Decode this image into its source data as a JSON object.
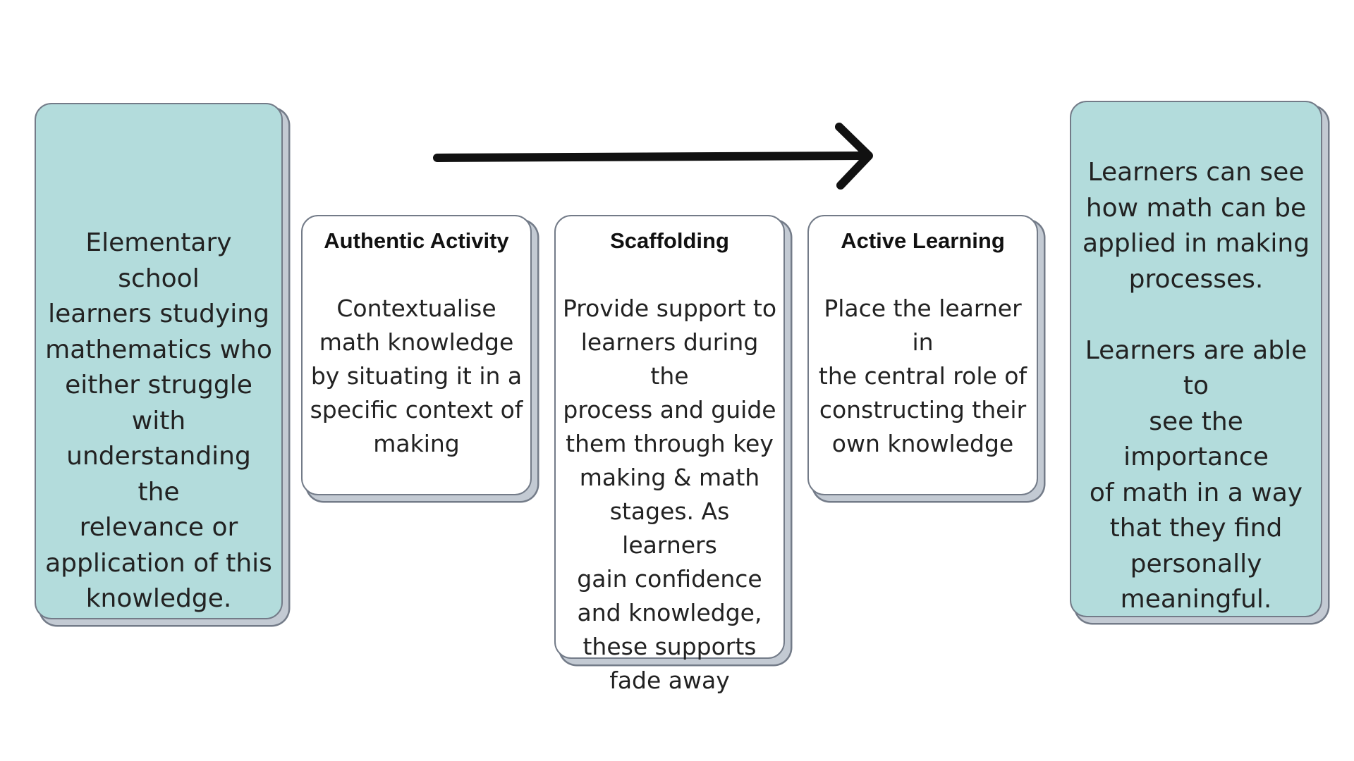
{
  "problem": {
    "text": "Elementary school\nlearners studying\nmathematics who\neither struggle with\nunderstanding the\nrelevance or\napplication of this\nknowledge."
  },
  "steps": [
    {
      "title": "Authentic Activity",
      "body": "Contextualise\nmath knowledge\nby situating it in a\nspecific context of\nmaking"
    },
    {
      "title": "Scaffolding",
      "body": "Provide support to\nlearners during the\nprocess and guide\nthem through key\nmaking & math\nstages. As learners\ngain confidence\nand knowledge,\nthese supports\nfade away"
    },
    {
      "title": "Active Learning",
      "body": "Place the learner in\nthe central role of\nconstructing their\nown knowledge"
    }
  ],
  "outcome": {
    "text": "Learners can see\nhow math can be\napplied in making\nprocesses.\n\nLearners are able to\nsee the importance\nof math in a way\nthat they find\npersonally\nmeaningful."
  },
  "colors": {
    "teal_card": "#b3dcdc",
    "white_card": "#ffffff",
    "card_border": "#737b88",
    "card_shadow": "#c3cad3",
    "arrow": "#111111"
  },
  "icons": {
    "arrow": "arrow-right-icon"
  }
}
